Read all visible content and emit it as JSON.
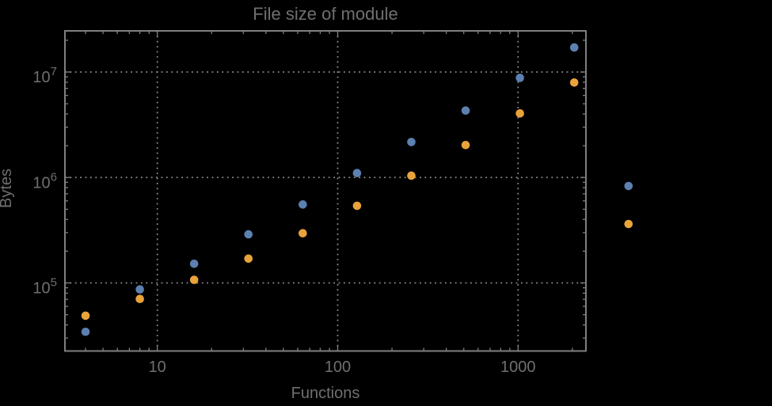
{
  "window": {
    "background_color": "#000000"
  },
  "colors": {
    "frame": "#7F7F7F",
    "gridline": "#8C8C8C",
    "text": "#6F6F6F",
    "series1": "#5C80B0",
    "series2": "#E9A33B",
    "background": "#000000"
  },
  "chart_data": {
    "type": "scatter",
    "title": "File size of module",
    "xlabel": "Functions",
    "ylabel": "Bytes",
    "x_scale": "log",
    "y_scale": "log",
    "grid": "dotted",
    "legend": "none",
    "xlim": [
      3.1,
      2380
    ],
    "ylim": [
      22000,
      24600000
    ],
    "x": [
      4,
      8,
      16,
      32,
      64,
      128,
      256,
      512,
      1024,
      2048,
      4096
    ],
    "series": [
      {
        "name": "series-1-blue",
        "color": "#5C80B0",
        "values": [
          34400,
          86800,
          152000,
          289000,
          555000,
          1100000,
          2170000,
          4310000,
          8810000,
          17100000,
          830000
        ]
      },
      {
        "name": "series-2-orange",
        "color": "#E9A33B",
        "values": [
          48900,
          70500,
          107000,
          170000,
          296000,
          539000,
          1040000,
          2030000,
          4050000,
          7950000,
          362000
        ]
      }
    ],
    "x_ticks": [
      {
        "value": 10,
        "label": "10"
      },
      {
        "value": 100,
        "label": "100"
      },
      {
        "value": 1000,
        "label": "1000"
      }
    ],
    "y_ticks": [
      {
        "value": 100000,
        "base": "10",
        "exp": "5"
      },
      {
        "value": 1000000,
        "base": "10",
        "exp": "6"
      },
      {
        "value": 10000000,
        "base": "10",
        "exp": "7"
      }
    ],
    "clipping": "points outside right frame edge are drawn unclipped"
  }
}
